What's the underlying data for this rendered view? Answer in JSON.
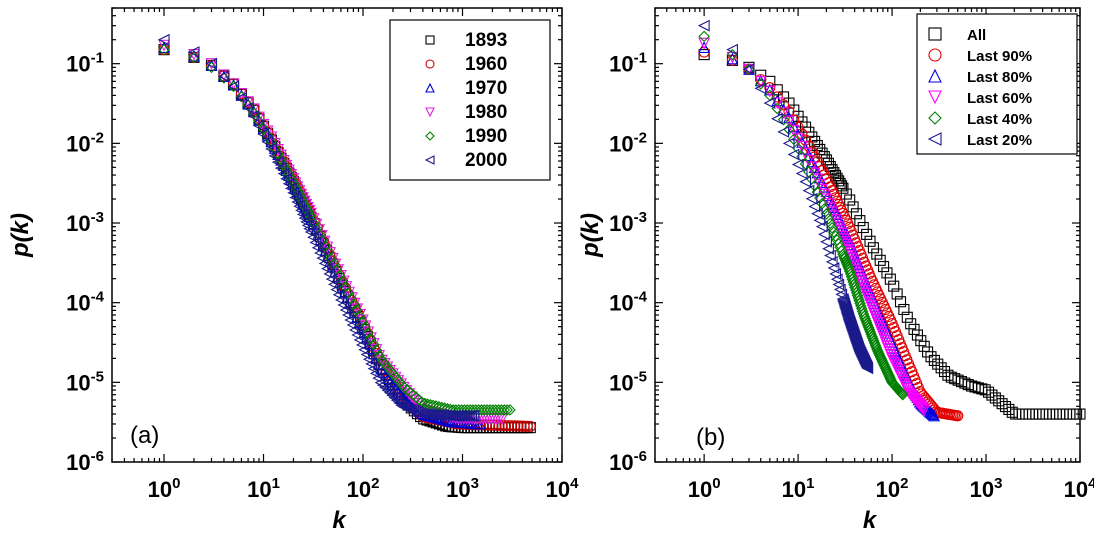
{
  "chart_data": [
    {
      "type": "scatter",
      "panel_label": "(a)",
      "xlabel": "k",
      "ylabel": "p(k)",
      "xscale": "log",
      "yscale": "log",
      "xlim": [
        0.3,
        10000
      ],
      "ylim": [
        1e-06,
        0.5
      ],
      "x_ticks": [
        {
          "base": "10",
          "exp": "0",
          "value": 1
        },
        {
          "base": "10",
          "exp": "1",
          "value": 10
        },
        {
          "base": "10",
          "exp": "2",
          "value": 100
        },
        {
          "base": "10",
          "exp": "3",
          "value": 1000
        },
        {
          "base": "10",
          "exp": "4",
          "value": 10000
        }
      ],
      "y_ticks": [
        {
          "base": "10",
          "exp": "-6",
          "value": 1e-06
        },
        {
          "base": "10",
          "exp": "-5",
          "value": 1e-05
        },
        {
          "base": "10",
          "exp": "-4",
          "value": 0.0001
        },
        {
          "base": "10",
          "exp": "-3",
          "value": 0.001
        },
        {
          "base": "10",
          "exp": "-2",
          "value": 0.01
        },
        {
          "base": "10",
          "exp": "-1",
          "value": 0.1
        }
      ],
      "legend_position": "top-right",
      "series": [
        {
          "name": "1893",
          "marker": "square",
          "color": "#000000",
          "points": [
            [
              1,
              0.15
            ],
            [
              2,
              0.12
            ],
            [
              3,
              0.095
            ],
            [
              5,
              0.055
            ],
            [
              8,
              0.026
            ],
            [
              12,
              0.011
            ],
            [
              20,
              0.0033
            ],
            [
              35,
              0.0008
            ],
            [
              60,
              0.00018
            ],
            [
              100,
              5e-05
            ],
            [
              150,
              1.6e-05
            ],
            [
              250,
              6e-06
            ],
            [
              400,
              3.5e-06
            ],
            [
              700,
              2.8e-06
            ],
            [
              1000,
              2.7e-06
            ],
            [
              2000,
              2.7e-06
            ],
            [
              4800,
              2.7e-06
            ]
          ]
        },
        {
          "name": "1960",
          "marker": "circle",
          "color": "#cc0000",
          "points": [
            [
              1,
              0.15
            ],
            [
              2,
              0.12
            ],
            [
              3,
              0.095
            ],
            [
              5,
              0.056
            ],
            [
              8,
              0.027
            ],
            [
              12,
              0.0115
            ],
            [
              20,
              0.0035
            ],
            [
              35,
              0.00085
            ],
            [
              60,
              0.0002
            ],
            [
              100,
              5.5e-05
            ],
            [
              150,
              1.8e-05
            ],
            [
              250,
              7e-06
            ],
            [
              400,
              3.7e-06
            ],
            [
              900,
              3e-06
            ],
            [
              4800,
              2.8e-06
            ]
          ]
        },
        {
          "name": "1970",
          "marker": "triangle-up",
          "color": "#0000cc",
          "points": [
            [
              1,
              0.16
            ],
            [
              2,
              0.125
            ],
            [
              3,
              0.095
            ],
            [
              5,
              0.054
            ],
            [
              8,
              0.025
            ],
            [
              12,
              0.0105
            ],
            [
              20,
              0.0031
            ],
            [
              35,
              0.00075
            ],
            [
              60,
              0.00017
            ],
            [
              100,
              4.5e-05
            ],
            [
              150,
              1.5e-05
            ],
            [
              250,
              6.5e-06
            ],
            [
              400,
              4e-06
            ],
            [
              800,
              3.2e-06
            ],
            [
              1500,
              3e-06
            ]
          ]
        },
        {
          "name": "1980",
          "marker": "triangle-down",
          "color": "#e020e0",
          "points": [
            [
              1,
              0.17
            ],
            [
              2,
              0.13
            ],
            [
              3,
              0.1
            ],
            [
              5,
              0.056
            ],
            [
              8,
              0.027
            ],
            [
              12,
              0.012
            ],
            [
              20,
              0.0036
            ],
            [
              35,
              0.0009
            ],
            [
              60,
              0.00022
            ],
            [
              100,
              6e-05
            ],
            [
              150,
              2e-05
            ],
            [
              250,
              9e-06
            ],
            [
              400,
              4.5e-06
            ],
            [
              900,
              3.5e-06
            ],
            [
              2500,
              3.5e-06
            ]
          ]
        },
        {
          "name": "1990",
          "marker": "diamond",
          "color": "#008000",
          "points": [
            [
              1,
              0.15
            ],
            [
              2,
              0.12
            ],
            [
              3,
              0.09
            ],
            [
              5,
              0.052
            ],
            [
              8,
              0.024
            ],
            [
              12,
              0.0105
            ],
            [
              20,
              0.0032
            ],
            [
              35,
              0.0008
            ],
            [
              60,
              0.0002
            ],
            [
              100,
              5.5e-05
            ],
            [
              150,
              2e-05
            ],
            [
              250,
              9e-06
            ],
            [
              400,
              5.5e-06
            ],
            [
              800,
              4.5e-06
            ],
            [
              3000,
              4.5e-06
            ]
          ]
        },
        {
          "name": "2000",
          "marker": "triangle-left",
          "color": "#1a1a8c",
          "points": [
            [
              1,
              0.2
            ],
            [
              2,
              0.14
            ],
            [
              3,
              0.1
            ],
            [
              5,
              0.052
            ],
            [
              8,
              0.022
            ],
            [
              12,
              0.0085
            ],
            [
              20,
              0.0024
            ],
            [
              35,
              0.0005
            ],
            [
              60,
              0.00011
            ],
            [
              100,
              2.8e-05
            ],
            [
              150,
              1e-05
            ],
            [
              250,
              5e-06
            ],
            [
              400,
              4e-06
            ],
            [
              800,
              3.8e-06
            ],
            [
              1300,
              3.8e-06
            ]
          ]
        }
      ]
    },
    {
      "type": "scatter",
      "panel_label": "(b)",
      "xlabel": "k",
      "ylabel": "p(k)",
      "xscale": "log",
      "yscale": "log",
      "xlim": [
        0.3,
        10000
      ],
      "ylim": [
        1e-06,
        0.5
      ],
      "x_ticks": [
        {
          "base": "10",
          "exp": "0",
          "value": 1
        },
        {
          "base": "10",
          "exp": "1",
          "value": 10
        },
        {
          "base": "10",
          "exp": "2",
          "value": 100
        },
        {
          "base": "10",
          "exp": "3",
          "value": 1000
        },
        {
          "base": "10",
          "exp": "4",
          "value": 10000
        }
      ],
      "y_ticks": [
        {
          "base": "10",
          "exp": "-6",
          "value": 1e-06
        },
        {
          "base": "10",
          "exp": "-5",
          "value": 1e-05
        },
        {
          "base": "10",
          "exp": "-4",
          "value": 0.0001
        },
        {
          "base": "10",
          "exp": "-3",
          "value": 0.001
        },
        {
          "base": "10",
          "exp": "-2",
          "value": 0.01
        },
        {
          "base": "10",
          "exp": "-1",
          "value": 0.1
        }
      ],
      "legend_position": "top-right",
      "series": [
        {
          "name": "All",
          "marker": "square",
          "color": "#000000",
          "points": [
            [
              1,
              0.13
            ],
            [
              2,
              0.11
            ],
            [
              3,
              0.09
            ],
            [
              5,
              0.06
            ],
            [
              8,
              0.032
            ],
            [
              12,
              0.016
            ],
            [
              20,
              0.0062
            ],
            [
              35,
              0.002
            ],
            [
              60,
              0.00055
            ],
            [
              100,
              0.00018
            ],
            [
              150,
              6e-05
            ],
            [
              250,
              2.2e-05
            ],
            [
              400,
              1.2e-05
            ],
            [
              700,
              9e-06
            ],
            [
              1000,
              8e-06
            ],
            [
              2000,
              4e-06
            ],
            [
              5000,
              4e-06
            ],
            [
              10000,
              4e-06
            ]
          ]
        },
        {
          "name": "Last 90%",
          "marker": "circle",
          "color": "#e00000",
          "points": [
            [
              1,
              0.14
            ],
            [
              2,
              0.11
            ],
            [
              3,
              0.085
            ],
            [
              5,
              0.05
            ],
            [
              8,
              0.025
            ],
            [
              12,
              0.011
            ],
            [
              20,
              0.0036
            ],
            [
              35,
              0.0009
            ],
            [
              60,
              0.0002
            ],
            [
              100,
              5.5e-05
            ],
            [
              150,
              1.7e-05
            ],
            [
              200,
              7.5e-06
            ],
            [
              300,
              4.2e-06
            ],
            [
              500,
              3.8e-06
            ]
          ]
        },
        {
          "name": "Last 80%",
          "marker": "triangle-up",
          "color": "#0000e0",
          "points": [
            [
              1,
              0.16
            ],
            [
              2,
              0.115
            ],
            [
              3,
              0.085
            ],
            [
              5,
              0.047
            ],
            [
              8,
              0.021
            ],
            [
              12,
              0.0085
            ],
            [
              20,
              0.0025
            ],
            [
              35,
              0.0006
            ],
            [
              60,
              0.00012
            ],
            [
              100,
              3e-05
            ],
            [
              150,
              1e-05
            ],
            [
              200,
              5.5e-06
            ],
            [
              280,
              3.8e-06
            ]
          ]
        },
        {
          "name": "Last 60%",
          "marker": "triangle-down",
          "color": "#ff00ff",
          "points": [
            [
              1,
              0.18
            ],
            [
              2,
              0.12
            ],
            [
              3,
              0.085
            ],
            [
              5,
              0.045
            ],
            [
              8,
              0.019
            ],
            [
              12,
              0.0075
            ],
            [
              20,
              0.002
            ],
            [
              35,
              0.00045
            ],
            [
              60,
              9e-05
            ],
            [
              100,
              2e-05
            ],
            [
              150,
              7.5e-06
            ],
            [
              220,
              4.5e-06
            ]
          ]
        },
        {
          "name": "Last 40%",
          "marker": "diamond",
          "color": "#008000",
          "points": [
            [
              1,
              0.22
            ],
            [
              2,
              0.13
            ],
            [
              3,
              0.085
            ],
            [
              5,
              0.04
            ],
            [
              8,
              0.015
            ],
            [
              12,
              0.0055
            ],
            [
              20,
              0.0013
            ],
            [
              35,
              0.00026
            ],
            [
              50,
              7e-05
            ],
            [
              70,
              2.5e-05
            ],
            [
              100,
              1e-05
            ],
            [
              130,
              7e-06
            ]
          ]
        },
        {
          "name": "Last 20%",
          "marker": "triangle-left",
          "color": "#1a1a8c",
          "points": [
            [
              1,
              0.3
            ],
            [
              2,
              0.15
            ],
            [
              3,
              0.085
            ],
            [
              5,
              0.032
            ],
            [
              8,
              0.01
            ],
            [
              12,
              0.0033
            ],
            [
              18,
              0.0009
            ],
            [
              25,
              0.00023
            ],
            [
              35,
              6e-05
            ],
            [
              45,
              2.5e-05
            ],
            [
              55,
              1.5e-05
            ]
          ]
        }
      ]
    }
  ]
}
